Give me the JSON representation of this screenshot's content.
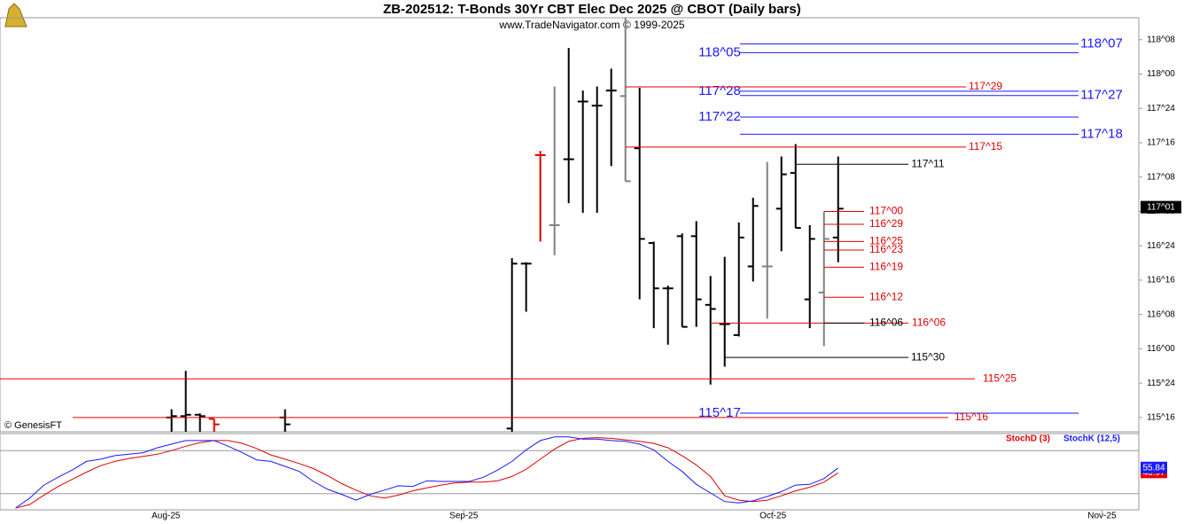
{
  "chart_data": {
    "type": "ohlc",
    "title": "ZB-202512:  T-Bonds 30Yr CBT Elec Dec 2025 @ CBOT  (Daily bars)",
    "subtitle": "www.TradeNavigator.com © 1999-2025",
    "watermark": "© GenesisFT",
    "xlim": [
      -1.1,
      79.2
    ],
    "xticks": [
      {
        "value": 10.6,
        "label": "Aug-25"
      },
      {
        "value": 31.6,
        "label": "Sep-25"
      },
      {
        "value": 53.4,
        "label": "Oct-25"
      },
      {
        "value": 76.6,
        "label": "Nov-25"
      }
    ],
    "ylim": [
      115.396,
      118.41
    ],
    "yticks": [
      {
        "value": 115.5,
        "label": "115^16"
      },
      {
        "value": 115.75,
        "label": "115^24"
      },
      {
        "value": 116,
        "label": "116^00"
      },
      {
        "value": 116.25,
        "label": "116^08"
      },
      {
        "value": 116.5,
        "label": "116^16"
      },
      {
        "value": 116.75,
        "label": "116^24"
      },
      {
        "value": 117,
        "label": "117^00"
      },
      {
        "value": 117.25,
        "label": "117^08"
      },
      {
        "value": 117.5,
        "label": "117^16"
      },
      {
        "value": 117.75,
        "label": "117^24"
      },
      {
        "value": 118,
        "label": "118^00"
      },
      {
        "value": 118.25,
        "label": "118^08"
      }
    ],
    "bars": [
      {
        "x": 11,
        "open": 115.5,
        "high": 115.56,
        "low": 115.3,
        "close": 115.51,
        "color": "#000000"
      },
      {
        "x": 12,
        "open": 115.51,
        "high": 115.84,
        "low": 115.3,
        "close": 115.52,
        "color": "#000000"
      },
      {
        "x": 13,
        "open": 115.52,
        "high": 115.53,
        "low": 115.3,
        "close": 115.51,
        "color": "#000000"
      },
      {
        "x": 14,
        "open": 115.49,
        "high": 115.49,
        "low": 115.35,
        "close": 115.45,
        "color": "#e00000"
      },
      {
        "x": 19,
        "open": 115.5,
        "high": 115.56,
        "low": 115.3,
        "close": 115.45,
        "color": "#000000"
      },
      {
        "x": 35,
        "open": 115.42,
        "high": 116.66,
        "low": 115.3,
        "close": 116.62,
        "color": "#000000"
      },
      {
        "x": 36,
        "open": 116.62,
        "high": 116.63,
        "low": 116.27,
        "close": 116.62,
        "color": "#000000"
      },
      {
        "x": 37,
        "open": 117.41,
        "high": 117.44,
        "low": 116.78,
        "close": 117.41,
        "color": "#e00000"
      },
      {
        "x": 38,
        "open": 116.9,
        "high": 117.91,
        "low": 116.68,
        "close": 116.9,
        "color": "#808080"
      },
      {
        "x": 39,
        "open": 117.38,
        "high": 118.19,
        "low": 117.06,
        "close": 117.38,
        "color": "#000000"
      },
      {
        "x": 40,
        "open": 117.8,
        "high": 117.88,
        "low": 116.99,
        "close": 117.8,
        "color": "#000000"
      },
      {
        "x": 41,
        "open": 117.77,
        "high": 117.91,
        "low": 116.99,
        "close": 117.77,
        "color": "#000000"
      },
      {
        "x": 42,
        "open": 117.88,
        "high": 118.04,
        "low": 117.33,
        "close": 117.88,
        "color": "#000000"
      },
      {
        "x": 43,
        "open": 117.84,
        "high": 118.48,
        "low": 117.22,
        "close": 117.22,
        "color": "#808080"
      },
      {
        "x": 44,
        "open": 117.46,
        "high": 117.9,
        "low": 116.36,
        "close": 116.8,
        "color": "#000000"
      },
      {
        "x": 45,
        "open": 116.77,
        "high": 116.78,
        "low": 116.15,
        "close": 116.44,
        "color": "#000000"
      },
      {
        "x": 46,
        "open": 116.44,
        "high": 116.46,
        "low": 116.03,
        "close": 116.44,
        "color": "#000000"
      },
      {
        "x": 47,
        "open": 116.82,
        "high": 116.84,
        "low": 116.16,
        "close": 116.16,
        "color": "#000000"
      },
      {
        "x": 48,
        "open": 116.82,
        "high": 116.93,
        "low": 116.16,
        "close": 116.36,
        "color": "#000000"
      },
      {
        "x": 49,
        "open": 116.32,
        "high": 116.53,
        "low": 115.74,
        "close": 116.29,
        "color": "#000000"
      },
      {
        "x": 50,
        "open": 116.18,
        "high": 116.67,
        "low": 115.87,
        "close": 116.18,
        "color": "#000000"
      },
      {
        "x": 51,
        "open": 116.1,
        "high": 116.92,
        "low": 116.09,
        "close": 116.81,
        "color": "#000000"
      },
      {
        "x": 52,
        "open": 116.6,
        "high": 117.1,
        "low": 116.49,
        "close": 117.04,
        "color": "#000000"
      },
      {
        "x": 53,
        "open": 116.6,
        "high": 117.36,
        "low": 116.22,
        "close": 116.6,
        "color": "#808080"
      },
      {
        "x": 54,
        "open": 117.02,
        "high": 117.4,
        "low": 116.71,
        "close": 117.27,
        "color": "#000000"
      },
      {
        "x": 55,
        "open": 117.28,
        "high": 117.49,
        "low": 116.88,
        "close": 116.88,
        "color": "#000000"
      },
      {
        "x": 56,
        "open": 116.36,
        "high": 116.9,
        "low": 116.15,
        "close": 116.8,
        "color": "#000000"
      },
      {
        "x": 57,
        "open": 116.41,
        "high": 117.0,
        "low": 116.02,
        "close": 116.8,
        "color": "#808080"
      },
      {
        "x": 58,
        "open": 116.81,
        "high": 117.4,
        "low": 116.63,
        "close": 117.02,
        "color": "#000000"
      }
    ],
    "levels": [
      {
        "label": "118^07",
        "value": 118.21875,
        "color": "#1a1aff"
      },
      {
        "label": "118^05",
        "value": 118.15625,
        "color": "#1a1aff"
      },
      {
        "label": "117^28",
        "value": 117.875,
        "color": "#1a1aff"
      },
      {
        "label": "117^27",
        "value": 117.84375,
        "color": "#1a1aff"
      },
      {
        "label": "117^22",
        "value": 117.6875,
        "color": "#1a1aff"
      },
      {
        "label": "117^18",
        "value": 117.5625,
        "color": "#1a1aff"
      },
      {
        "label": "115^17",
        "value": 115.53125,
        "color": "#1a1aff"
      },
      {
        "label": "117^29",
        "value": 117.90625,
        "color": "#e00000"
      },
      {
        "label": "117^15",
        "value": 117.46875,
        "color": "#e00000"
      },
      {
        "label": "115^25",
        "value": 115.78125,
        "color": "#e00000"
      },
      {
        "label": "115^16",
        "value": 115.5,
        "color": "#e00000"
      },
      {
        "label": "117^00",
        "value": 117.0,
        "color": "#e00000"
      },
      {
        "label": "116^29",
        "value": 116.90625,
        "color": "#e00000"
      },
      {
        "label": "116^25",
        "value": 116.78125,
        "color": "#e00000"
      },
      {
        "label": "116^23",
        "value": 116.71875,
        "color": "#e00000"
      },
      {
        "label": "116^19",
        "value": 116.59375,
        "color": "#e00000"
      },
      {
        "label": "116^12",
        "value": 116.375,
        "color": "#e00000"
      },
      {
        "label": "116^06",
        "value": 116.1875,
        "color": "#e00000"
      },
      {
        "label": "117^11",
        "value": 117.34375,
        "color": "#000000"
      },
      {
        "label": "116^06",
        "value": 116.1875,
        "color": "#000000"
      },
      {
        "label": "115^30",
        "value": 115.9375,
        "color": "#000000"
      }
    ],
    "last": {
      "value": 117.03125,
      "label": "117^01"
    },
    "indicator": {
      "type": "line",
      "ylim": [
        0,
        100
      ],
      "levels": [
        80,
        20
      ],
      "x": [
        0,
        1,
        2,
        3,
        4,
        5,
        6,
        7,
        8,
        9,
        10,
        11,
        12,
        13,
        14,
        15,
        16,
        17,
        18,
        19,
        20,
        21,
        22,
        23,
        24,
        25,
        26,
        27,
        28,
        29,
        30,
        31,
        32,
        33,
        34,
        35,
        36,
        37,
        38,
        39,
        40,
        41,
        42,
        43,
        44,
        45,
        46,
        47,
        48,
        49,
        50,
        51,
        52,
        53,
        54,
        55,
        56,
        57,
        58
      ],
      "series": [
        {
          "name": "StochD (3)",
          "color": "#e00000",
          "values": [
            0,
            5,
            18,
            30,
            40,
            50,
            59,
            65,
            69,
            72,
            75,
            80,
            86,
            91,
            94,
            94,
            90,
            83,
            74,
            68,
            62,
            55,
            45,
            34,
            25,
            17,
            14,
            18,
            24,
            28,
            32,
            35,
            36,
            36,
            38,
            44,
            54,
            68,
            82,
            93,
            97,
            98,
            97,
            95,
            93,
            90,
            84,
            73,
            60,
            44,
            17,
            11,
            9,
            11,
            17,
            24,
            29,
            36,
            48.97
          ]
        },
        {
          "name": "StochK (12,5)",
          "color": "#1a1aff",
          "values": [
            0,
            14,
            32,
            43,
            53,
            65,
            68,
            73,
            75,
            77,
            84,
            89,
            94,
            94,
            94,
            86,
            77,
            67,
            65,
            58,
            51,
            37,
            26,
            19,
            11,
            19,
            25,
            31,
            30,
            38,
            37,
            37,
            37,
            43,
            53,
            65,
            81,
            94,
            99,
            99,
            96,
            96,
            94,
            93,
            89,
            81,
            65,
            51,
            33,
            21,
            9,
            7,
            10,
            16,
            23,
            32,
            33,
            41,
            55.84
          ]
        }
      ]
    }
  }
}
